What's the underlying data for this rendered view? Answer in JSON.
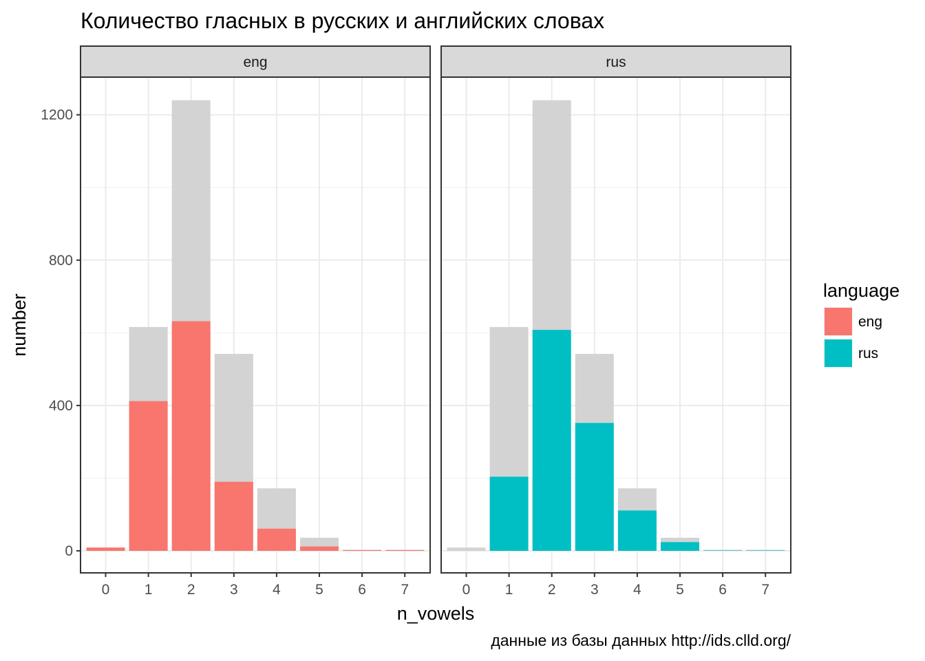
{
  "chart_data": {
    "type": "bar",
    "title": "Количество гласных в русских и английских словах",
    "xlabel": "n_vowels",
    "ylabel": "number",
    "caption": "данные из базы данных http://ids.clld.org/",
    "x_ticks": [
      "0",
      "1",
      "2",
      "3",
      "4",
      "5",
      "6",
      "7"
    ],
    "y_ticks": [
      "0",
      "400",
      "800",
      "1200"
    ],
    "ylim": [
      -60,
      1300
    ],
    "grid": true,
    "legend": {
      "title": "language",
      "position": "right",
      "entries": [
        {
          "label": "eng",
          "color": "#F8766D"
        },
        {
          "label": "rus",
          "color": "#00BFC4"
        }
      ]
    },
    "background_color": "#D3D3D3",
    "background_totals": [
      9,
      616,
      1240,
      542,
      172,
      36,
      3,
      3
    ],
    "panels": [
      {
        "strip": "eng",
        "color": "#F8766D",
        "values": [
          9,
          412,
          632,
          190,
          61,
          12,
          2,
          2
        ]
      },
      {
        "strip": "rus",
        "color": "#00BFC4",
        "values": [
          0,
          204,
          608,
          352,
          111,
          24,
          1,
          1
        ]
      }
    ]
  }
}
